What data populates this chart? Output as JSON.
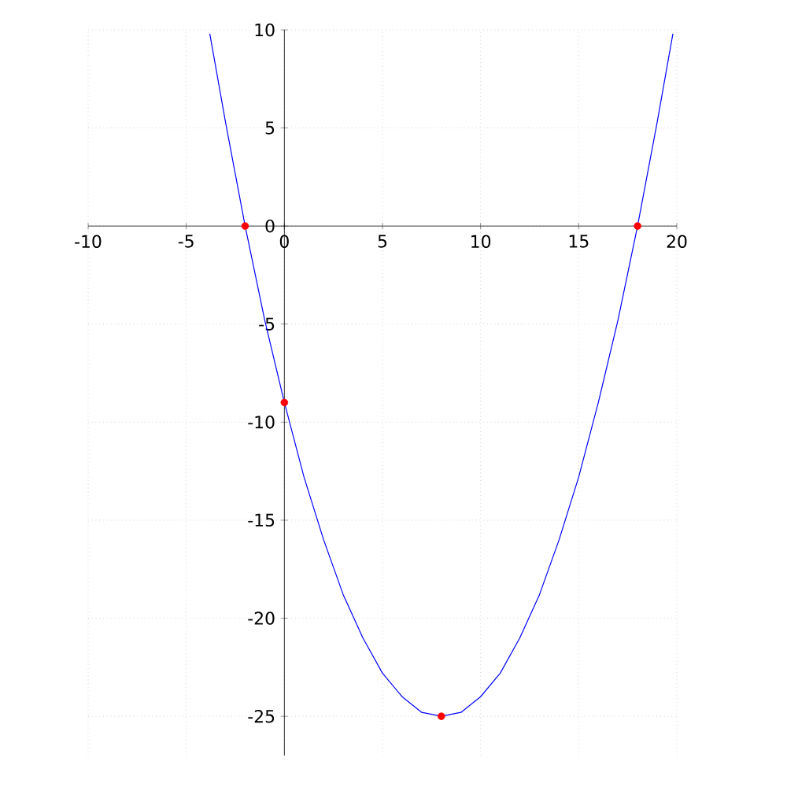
{
  "chart_data": {
    "type": "line",
    "xlim": [
      -10,
      20
    ],
    "ylim": [
      -27,
      10
    ],
    "xticks": [
      -10,
      -5,
      0,
      5,
      10,
      15,
      20
    ],
    "yticks": [
      -25,
      -20,
      -15,
      -10,
      -5,
      0,
      5,
      10
    ],
    "grid": true,
    "series": [
      {
        "color": "#0000ff",
        "marker": "none",
        "line_style": "solid",
        "x": [
          -3.8,
          -3,
          -2,
          -1,
          0,
          1,
          2,
          3,
          4,
          5,
          6,
          7,
          8,
          9,
          10,
          11,
          12,
          13,
          14,
          15,
          16,
          17,
          18,
          19,
          19.8
        ],
        "values": [
          9.8,
          5.3,
          0,
          -4.8,
          -9,
          -12.8,
          -16,
          -18.8,
          -21,
          -22.8,
          -24,
          -24.8,
          -25,
          -24.8,
          -24,
          -22.8,
          -21,
          -18.8,
          -16,
          -12.8,
          -9,
          -4.8,
          0,
          5.3,
          9.8
        ]
      },
      {
        "type": "scatter",
        "color": "#ff0000",
        "marker": "circle",
        "x": [
          -2,
          0,
          8,
          18
        ],
        "values": [
          0,
          -9,
          -25,
          0
        ]
      }
    ]
  }
}
